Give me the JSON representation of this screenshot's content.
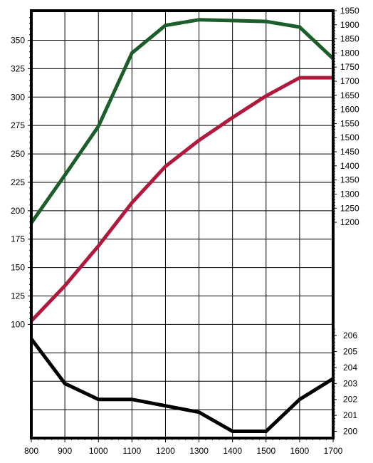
{
  "chart_data": {
    "type": "line",
    "title": "",
    "x": [
      800,
      900,
      1000,
      1100,
      1200,
      1300,
      1400,
      1500,
      1600,
      1700
    ],
    "x_ticks": [
      800,
      900,
      1000,
      1100,
      1200,
      1300,
      1400,
      1500,
      1600,
      1700
    ],
    "xlim": [
      800,
      1700
    ],
    "left_axis": {
      "ticks": [
        100,
        125,
        150,
        175,
        200,
        225,
        250,
        275,
        300,
        325,
        350
      ],
      "range": [
        0,
        376
      ]
    },
    "right_axis_upper": {
      "ticks": [
        1200,
        1250,
        1300,
        1350,
        1400,
        1450,
        1500,
        1550,
        1600,
        1650,
        1700,
        1750,
        1800,
        1850,
        1900,
        1950
      ],
      "range": [
        1180,
        1950
      ]
    },
    "right_axis_lower": {
      "ticks": [
        200,
        201,
        202,
        203,
        204,
        205,
        206
      ],
      "range": [
        199.8,
        206.5
      ]
    },
    "grid": true,
    "legend": "none",
    "series": [
      {
        "axis": "right_upper",
        "color": "#1b5e2a",
        "values": [
          1198,
          1367,
          1540,
          1800,
          1898,
          1918,
          1915,
          1912,
          1892,
          1780
        ]
      },
      {
        "axis": "left",
        "color": "#b0183c",
        "values": [
          103,
          134,
          169,
          207,
          239,
          262,
          282,
          301,
          317,
          317
        ]
      },
      {
        "axis": "right_lower",
        "color": "#000000",
        "values": [
          205.8,
          203.0,
          202.0,
          202.0,
          201.6,
          201.2,
          200.0,
          200.0,
          202.0,
          203.3
        ]
      }
    ]
  }
}
